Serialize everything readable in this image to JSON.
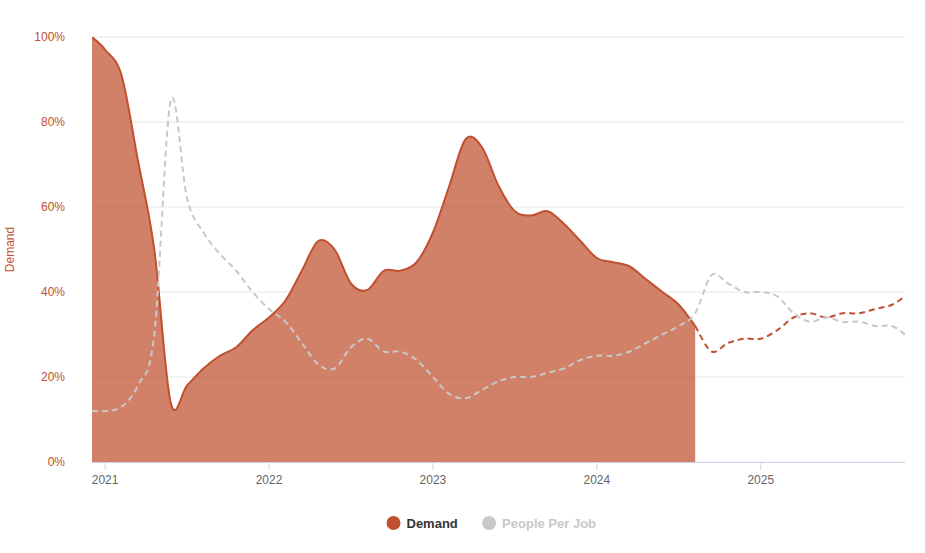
{
  "chart_data": {
    "type": "area",
    "y_label": "Demand",
    "x": [
      2020.92,
      2021.0,
      2021.1,
      2021.2,
      2021.3,
      2021.4,
      2021.5,
      2021.6,
      2021.7,
      2021.8,
      2021.9,
      2022.0,
      2022.1,
      2022.2,
      2022.3,
      2022.4,
      2022.5,
      2022.6,
      2022.7,
      2022.8,
      2022.9,
      2023.0,
      2023.1,
      2023.2,
      2023.3,
      2023.4,
      2023.5,
      2023.6,
      2023.7,
      2023.8,
      2023.9,
      2024.0,
      2024.1,
      2024.2,
      2024.3,
      2024.4,
      2024.5,
      2024.6,
      2024.7,
      2024.8,
      2024.9,
      2025.0,
      2025.1,
      2025.2,
      2025.3,
      2025.4,
      2025.5,
      2025.6,
      2025.7,
      2025.8,
      2025.88
    ],
    "series": [
      {
        "name": "Demand",
        "type": "area",
        "color": "#c0502f",
        "values": [
          100,
          97,
          91,
          71,
          50,
          14,
          18,
          22,
          25,
          27,
          31,
          34,
          38,
          45,
          52,
          50,
          42,
          40.5,
          45,
          45,
          47,
          54,
          65,
          76,
          74,
          65,
          59,
          58,
          59,
          56,
          52,
          48,
          47,
          46,
          43,
          40,
          37,
          32,
          null,
          null,
          null,
          null,
          null,
          null,
          null,
          null,
          null,
          null,
          null,
          null,
          null
        ]
      },
      {
        "name": "Demand",
        "type": "line",
        "line_style": "dashed",
        "color": "#c0502f",
        "values": [
          null,
          null,
          null,
          null,
          null,
          null,
          null,
          null,
          null,
          null,
          null,
          null,
          null,
          null,
          null,
          null,
          null,
          null,
          null,
          null,
          null,
          null,
          null,
          null,
          null,
          null,
          null,
          null,
          null,
          null,
          null,
          null,
          null,
          null,
          null,
          null,
          null,
          32,
          26,
          28,
          29,
          29,
          31,
          34,
          35,
          34,
          35,
          35,
          36,
          37,
          39
        ]
      },
      {
        "name": "People Per Job",
        "type": "line",
        "line_style": "dashed",
        "color": "#c8c8c8",
        "values": [
          12,
          12,
          13,
          18,
          30,
          85,
          62,
          54,
          49,
          45,
          40,
          36,
          33,
          28,
          23,
          22,
          27,
          29,
          26,
          26,
          24,
          20,
          16,
          15,
          17,
          19,
          20,
          20,
          21,
          22,
          24,
          25,
          25,
          26,
          28,
          30,
          32,
          35,
          44,
          42,
          40,
          40,
          39,
          35,
          33,
          34,
          33,
          33,
          32,
          32,
          30
        ]
      }
    ],
    "xlim": [
      2020.92,
      2025.88
    ],
    "xticks": [
      2021,
      2022,
      2023,
      2024,
      2025
    ],
    "ylim": [
      0,
      100
    ],
    "yticks": [
      {
        "value": 0,
        "label": "0%"
      },
      {
        "value": 20,
        "label": "20%"
      },
      {
        "value": 40,
        "label": "40%"
      },
      {
        "value": 60,
        "label": "60%"
      },
      {
        "value": 80,
        "label": "80%"
      },
      {
        "value": 100,
        "label": "100%"
      }
    ],
    "grid": true,
    "legend": "bottom"
  }
}
